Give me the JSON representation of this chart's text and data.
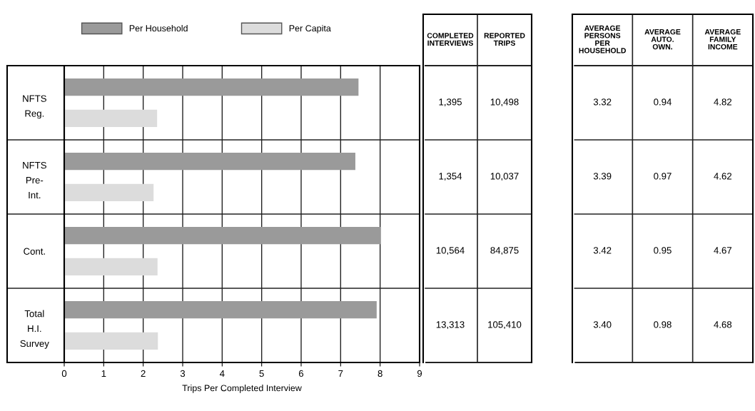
{
  "chart_data": [
    {
      "type": "bar",
      "orientation": "horizontal",
      "xlabel": "Trips Per Completed Interview",
      "categories": [
        "NFTS\nReg.",
        "NFTS\nPre-\nInt.",
        "Cont.",
        "Total\nH.I.\nSurvey"
      ],
      "series": [
        {
          "name": "Per Household",
          "color": "#9a9a9a",
          "values": [
            7.44,
            7.36,
            8.0,
            7.9
          ]
        },
        {
          "name": "Per Capita",
          "color": "#dcdcdc",
          "values": [
            2.34,
            2.25,
            2.35,
            2.36
          ]
        }
      ],
      "xlim": [
        0,
        9
      ],
      "xticks": [
        0,
        1,
        2,
        3,
        4,
        5,
        6,
        7,
        8,
        9
      ],
      "grid": true,
      "legend": "top"
    },
    {
      "type": "other",
      "categories": [
        "COMPLETED\nINTERVIEWS",
        "REPORTED\nTRIPS"
      ],
      "cell_labels": [
        [
          "1,395",
          "10,498"
        ],
        [
          "1,354",
          "10,037"
        ],
        [
          "10,564",
          "84,875"
        ],
        [
          "13,313",
          "105,410"
        ]
      ]
    },
    {
      "type": "other",
      "categories": [
        "AVERAGE\nPERSONS\nPER\nHOUSEHOLD",
        "AVERAGE\nAUTO.\nOWN.",
        "AVERAGE\nFAMILY\nINCOME"
      ],
      "cell_labels": [
        [
          "3.32",
          "0.94",
          "4.82"
        ],
        [
          "3.39",
          "0.97",
          "4.62"
        ],
        [
          "3.42",
          "0.95",
          "4.67"
        ],
        [
          "3.40",
          "0.98",
          "4.68"
        ]
      ]
    }
  ]
}
